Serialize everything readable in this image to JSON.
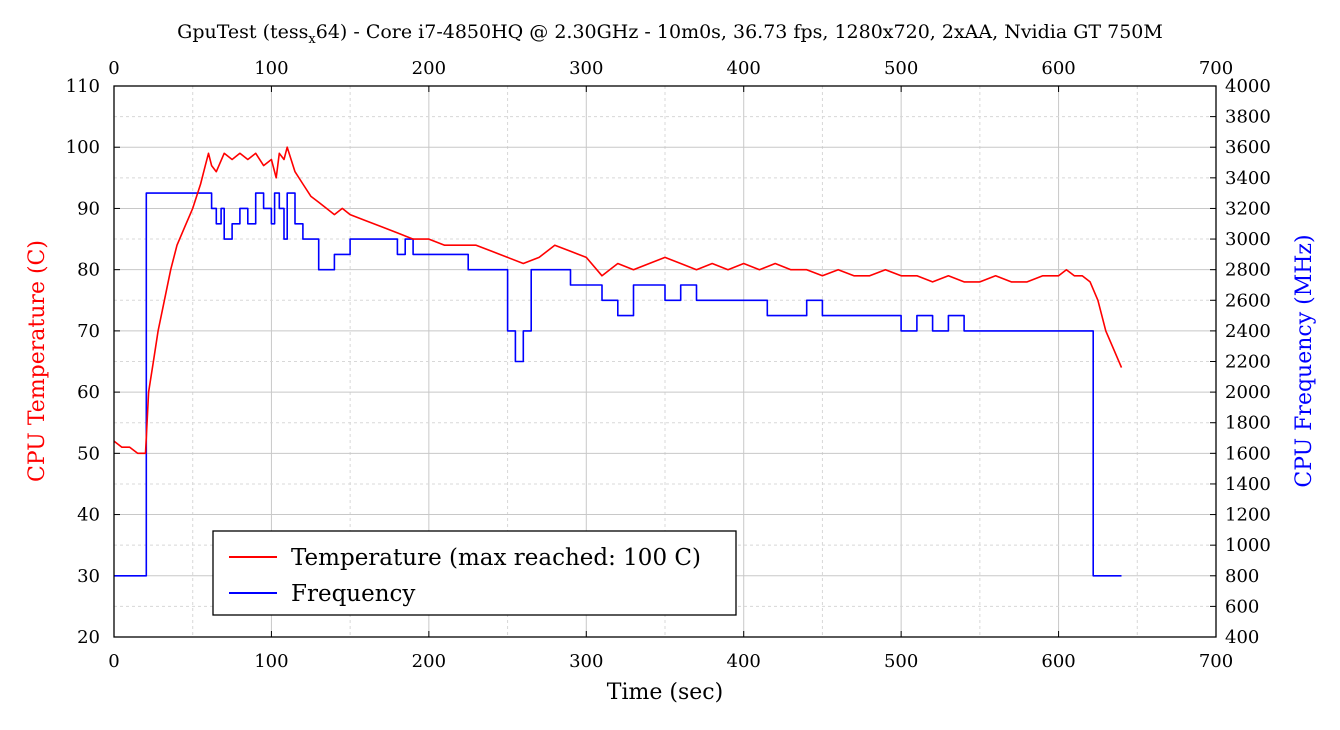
{
  "chart_data": {
    "type": "line",
    "title_prefix": "GpuTest (tess",
    "title_sub": "x",
    "title_suffix": "64) - Core i7-4850HQ @ 2.30GHz - 10m0s, 36.73 fps, 1280x720, 2xAA, Nvidia GT 750M",
    "xlabel": "Time (sec)",
    "ylabel_left": "CPU Temperature (C)",
    "ylabel_right": "CPU Frequency (MHz)",
    "xlim": [
      0,
      700
    ],
    "ylim_left": [
      20,
      110
    ],
    "ylim_right": [
      400,
      4000
    ],
    "x_ticks": [
      "0",
      "100",
      "200",
      "300",
      "400",
      "500",
      "600",
      "700"
    ],
    "y_left_ticks": [
      "20",
      "30",
      "40",
      "50",
      "60",
      "70",
      "80",
      "90",
      "100",
      "110"
    ],
    "y_right_ticks": [
      "400",
      "600",
      "800",
      "1000",
      "1200",
      "1400",
      "1600",
      "1800",
      "2000",
      "2200",
      "2400",
      "2600",
      "2800",
      "3000",
      "3200",
      "3400",
      "3600",
      "3800",
      "4000"
    ],
    "grid": true,
    "legend_position": "bottom-left",
    "colors": {
      "temperature": "#ff0000",
      "frequency": "#0000ff",
      "left_axis": "#ff0000",
      "right_axis": "#0000ff"
    },
    "series": [
      {
        "name": "Temperature (max reached: 100 C)",
        "axis": "left",
        "x": [
          0,
          5,
          10,
          15,
          20,
          22,
          25,
          28,
          32,
          36,
          40,
          45,
          50,
          55,
          58,
          60,
          62,
          65,
          70,
          75,
          80,
          85,
          90,
          95,
          100,
          103,
          105,
          108,
          110,
          115,
          120,
          125,
          130,
          135,
          140,
          145,
          150,
          160,
          170,
          180,
          190,
          200,
          210,
          220,
          230,
          240,
          250,
          260,
          270,
          280,
          290,
          300,
          310,
          320,
          330,
          340,
          350,
          360,
          370,
          380,
          390,
          400,
          410,
          420,
          430,
          440,
          450,
          460,
          470,
          480,
          490,
          500,
          510,
          520,
          530,
          540,
          550,
          560,
          570,
          580,
          590,
          600,
          605,
          610,
          615,
          620,
          625,
          630,
          635,
          640
        ],
        "y": [
          52,
          51,
          51,
          50,
          50,
          60,
          65,
          70,
          75,
          80,
          84,
          87,
          90,
          94,
          97,
          99,
          97,
          96,
          99,
          98,
          99,
          98,
          99,
          97,
          98,
          95,
          99,
          98,
          100,
          96,
          94,
          92,
          91,
          90,
          89,
          90,
          89,
          88,
          87,
          86,
          85,
          85,
          84,
          84,
          84,
          83,
          82,
          81,
          82,
          84,
          83,
          82,
          79,
          81,
          80,
          81,
          82,
          81,
          80,
          81,
          80,
          81,
          80,
          81,
          80,
          80,
          79,
          80,
          79,
          79,
          80,
          79,
          79,
          78,
          79,
          78,
          78,
          79,
          78,
          78,
          79,
          79,
          80,
          79,
          79,
          78,
          75,
          70,
          67,
          64
        ]
      },
      {
        "name": "Frequency",
        "axis": "right",
        "x": [
          0,
          20,
          20.5,
          22,
          25,
          30,
          40,
          50,
          58,
          60,
          62,
          65,
          68,
          70,
          75,
          80,
          85,
          90,
          95,
          100,
          102,
          105,
          108,
          110,
          115,
          120,
          130,
          140,
          145,
          150,
          160,
          170,
          180,
          185,
          190,
          200,
          210,
          220,
          225,
          230,
          240,
          250,
          255,
          260,
          265,
          270,
          275,
          280,
          290,
          300,
          310,
          320,
          330,
          340,
          350,
          360,
          370,
          375,
          380,
          390,
          400,
          410,
          415,
          420,
          430,
          440,
          450,
          455,
          460,
          470,
          480,
          490,
          500,
          510,
          520,
          530,
          540,
          550,
          560,
          570,
          580,
          590,
          600,
          610,
          615,
          620,
          622,
          625,
          640
        ],
        "y": [
          800,
          800,
          3300,
          3300,
          3300,
          3300,
          3300,
          3300,
          3300,
          3300,
          3200,
          3100,
          3200,
          3000,
          3100,
          3200,
          3100,
          3300,
          3200,
          3100,
          3300,
          3200,
          3000,
          3300,
          3100,
          3000,
          2800,
          2900,
          2900,
          3000,
          3000,
          3000,
          2900,
          3000,
          2900,
          2900,
          2900,
          2900,
          2800,
          2800,
          2800,
          2400,
          2200,
          2400,
          2800,
          2800,
          2800,
          2800,
          2700,
          2700,
          2600,
          2500,
          2700,
          2700,
          2600,
          2700,
          2600,
          2600,
          2600,
          2600,
          2600,
          2600,
          2500,
          2500,
          2500,
          2600,
          2500,
          2500,
          2500,
          2500,
          2500,
          2500,
          2400,
          2500,
          2400,
          2500,
          2400,
          2400,
          2400,
          2400,
          2400,
          2400,
          2400,
          2400,
          2400,
          2400,
          800,
          800,
          800
        ]
      }
    ]
  }
}
